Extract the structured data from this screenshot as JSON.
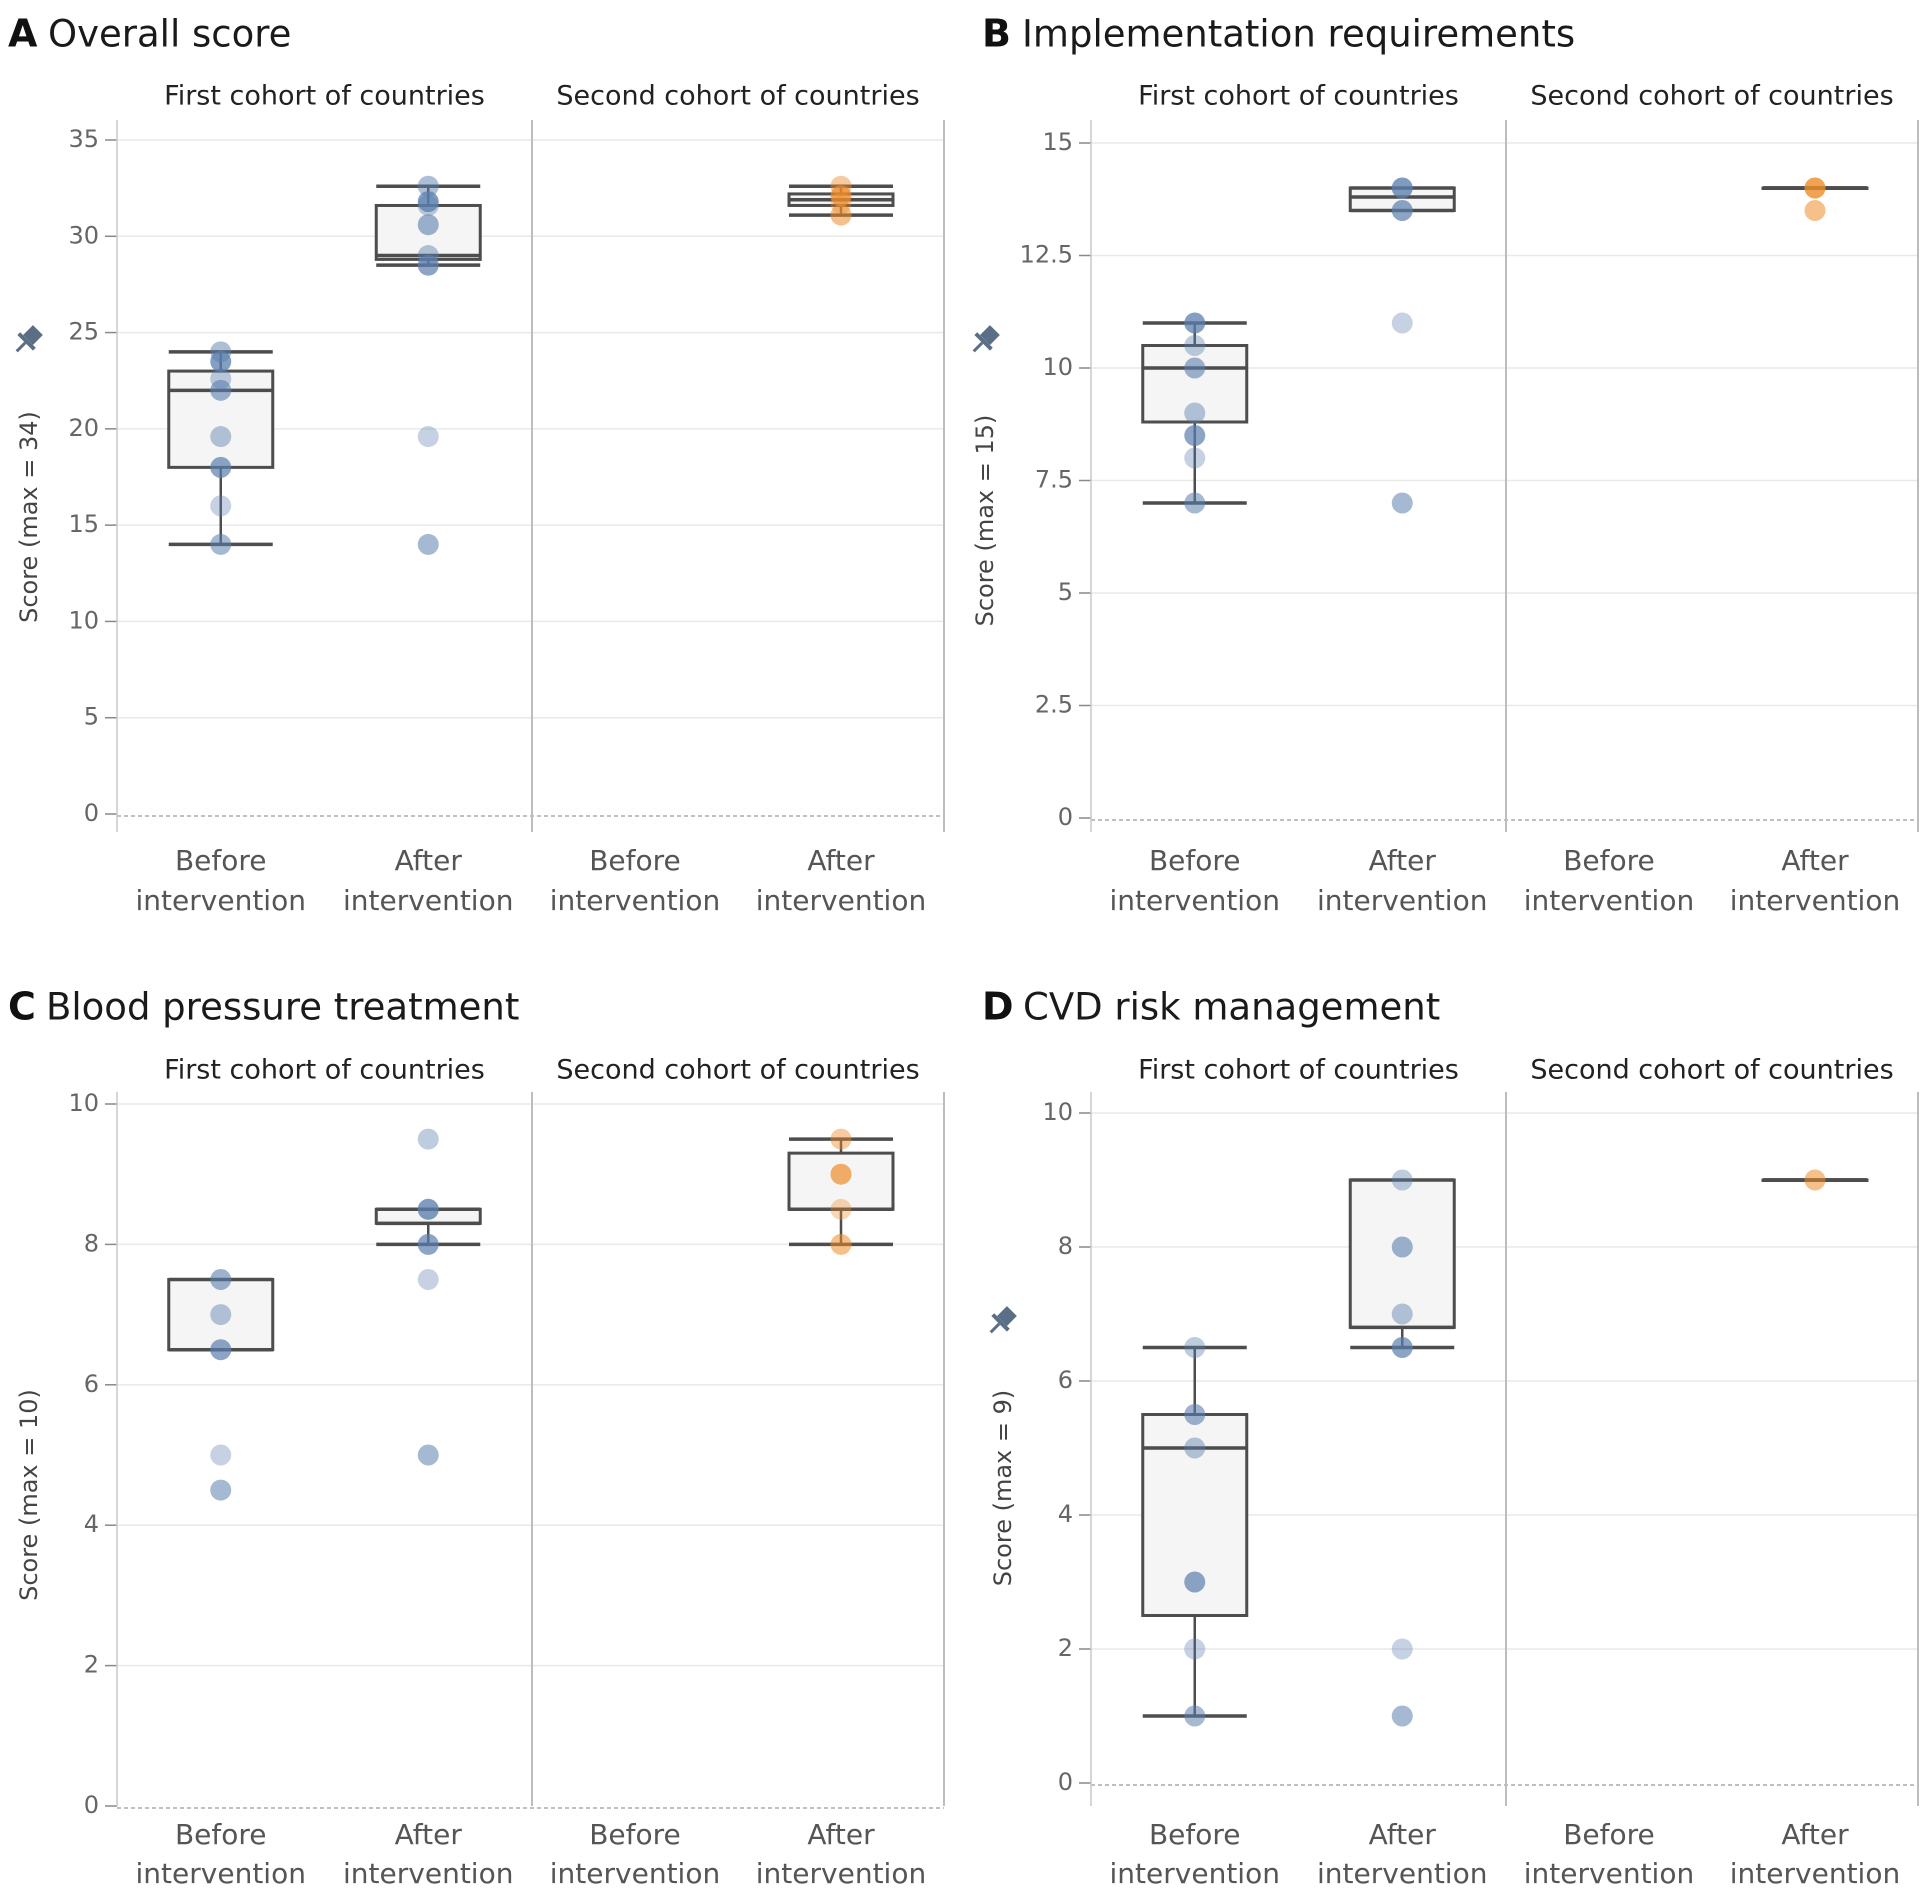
{
  "figure": {
    "cohorts": [
      "First cohort of countries",
      "Second cohort of countries"
    ],
    "categories": [
      [
        "Before",
        "intervention"
      ],
      [
        "After",
        "intervention"
      ]
    ],
    "colors": {
      "first_cohort_point": "#5b7fae",
      "second_cohort_point": "#ee8c2a",
      "box_fill": "#f5f5f5",
      "box_stroke": "#4d4d4d",
      "divider": "#bdbdbd",
      "grid": "#e9e9e9",
      "pin": "#5a6e85"
    },
    "pin_icon": "pin-icon"
  },
  "chart_data": [
    {
      "letter": "A",
      "title": "Overall score",
      "type": "box-strip",
      "ylabel": "Score (max = 34)",
      "ylim": [
        0,
        35
      ],
      "yticks": [
        0,
        5,
        10,
        15,
        20,
        25,
        30,
        35
      ],
      "tick_labels": [
        "0",
        "5",
        "10",
        "15",
        "20",
        "25",
        "30",
        "35"
      ],
      "groups": [
        {
          "cohort": 0,
          "category": 0,
          "points": [
            14,
            16,
            18,
            19.6,
            22,
            22.6,
            23.5,
            24
          ],
          "box": {
            "whisker_low": 14,
            "q1": 18,
            "median": 22,
            "q3": 23,
            "whisker_high": 24
          }
        },
        {
          "cohort": 0,
          "category": 1,
          "points": [
            14,
            19.6,
            28.5,
            29,
            30.6,
            31.6,
            31.8,
            32.6
          ],
          "box": {
            "whisker_low": 28.5,
            "q1": 28.8,
            "median": 29,
            "q3": 31.6,
            "whisker_high": 32.6
          }
        },
        {
          "cohort": 1,
          "category": 1,
          "points": [
            31.1,
            31.7,
            32.1,
            32.6
          ],
          "box": {
            "whisker_low": 31.1,
            "q1": 31.6,
            "median": 31.9,
            "q3": 32.2,
            "whisker_high": 32.6
          }
        }
      ]
    },
    {
      "letter": "B",
      "title": "Implementation requirements",
      "type": "box-strip",
      "ylabel": "Score (max = 15)",
      "ylim": [
        0,
        15
      ],
      "yticks": [
        0,
        2.5,
        5,
        7.5,
        10,
        12.5,
        15
      ],
      "tick_labels": [
        "0",
        "2.5",
        "5",
        "7.5",
        "10",
        "12.5",
        "15"
      ],
      "groups": [
        {
          "cohort": 0,
          "category": 0,
          "points": [
            7,
            8,
            8.5,
            9,
            10,
            10.5,
            11
          ],
          "box": {
            "whisker_low": 7,
            "q1": 8.8,
            "median": 10,
            "q3": 10.5,
            "whisker_high": 11
          }
        },
        {
          "cohort": 0,
          "category": 1,
          "points": [
            7,
            11,
            13.5,
            14,
            14
          ],
          "box": {
            "whisker_low": 13.5,
            "q1": 13.5,
            "median": 13.8,
            "q3": 14,
            "whisker_high": 14
          }
        },
        {
          "cohort": 1,
          "category": 1,
          "points": [
            13.5,
            14,
            14
          ],
          "box": {
            "whisker_low": 14,
            "q1": 14,
            "median": 14,
            "q3": 14,
            "whisker_high": 14
          }
        }
      ]
    },
    {
      "letter": "C",
      "title": "Blood pressure treatment",
      "type": "box-strip",
      "ylabel": "Score (max = 10)",
      "ylim": [
        0,
        10
      ],
      "yticks": [
        0,
        2,
        4,
        6,
        8,
        10
      ],
      "tick_labels": [
        "0",
        "2",
        "4",
        "6",
        "8",
        "10"
      ],
      "groups": [
        {
          "cohort": 0,
          "category": 0,
          "points": [
            4.5,
            5,
            6.5,
            7,
            7.5
          ],
          "box": {
            "whisker_low": 6.5,
            "q1": 6.5,
            "median": 6.5,
            "q3": 7.5,
            "whisker_high": 7.5
          }
        },
        {
          "cohort": 0,
          "category": 1,
          "points": [
            5,
            7.5,
            8,
            8.5,
            8.5,
            9.5
          ],
          "box": {
            "whisker_low": 8,
            "q1": 8.3,
            "median": 8.3,
            "q3": 8.5,
            "whisker_high": 8.5
          }
        },
        {
          "cohort": 1,
          "category": 1,
          "points": [
            8,
            8.5,
            9,
            9.5
          ],
          "box": {
            "whisker_low": 8,
            "q1": 8.5,
            "median": 8.5,
            "q3": 9.3,
            "whisker_high": 9.5
          }
        }
      ]
    },
    {
      "letter": "D",
      "title": "CVD risk management",
      "type": "box-strip",
      "ylabel": "Score (max = 9)",
      "ylim": [
        0,
        10
      ],
      "yticks": [
        0,
        2,
        4,
        6,
        8,
        10
      ],
      "tick_labels": [
        "0",
        "2",
        "4",
        "6",
        "8",
        "10"
      ],
      "groups": [
        {
          "cohort": 0,
          "category": 0,
          "points": [
            1,
            2,
            3,
            5,
            5.5,
            6.5
          ],
          "box": {
            "whisker_low": 1,
            "q1": 2.5,
            "median": 5,
            "q3": 5.5,
            "whisker_high": 6.5
          }
        },
        {
          "cohort": 0,
          "category": 1,
          "points": [
            1,
            2,
            6.5,
            7,
            8,
            9
          ],
          "box": {
            "whisker_low": 6.5,
            "q1": 6.8,
            "median": 6.8,
            "q3": 9,
            "whisker_high": 9
          }
        },
        {
          "cohort": 1,
          "category": 1,
          "points": [
            9
          ],
          "box": {
            "whisker_low": 9,
            "q1": 9,
            "median": 9,
            "q3": 9,
            "whisker_high": 9
          }
        }
      ]
    }
  ]
}
